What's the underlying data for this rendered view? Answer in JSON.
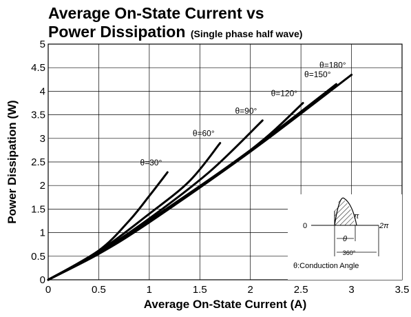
{
  "title_line1": "Average On-State Current vs",
  "title_line2_main": "Power Dissipation",
  "title_line2_sub": "(Single phase half wave)",
  "chart_data": {
    "type": "line",
    "title": "Average On-State Current vs Power Dissipation (Single phase half wave)",
    "xlabel": "Average On-State Current (A)",
    "ylabel": "Power Dissipation (W)",
    "xlim": [
      0,
      3.5
    ],
    "ylim": [
      0,
      5
    ],
    "xticks": [
      "0",
      "0.5",
      "1",
      "1.5",
      "2",
      "2.5",
      "3",
      "3.5"
    ],
    "yticks": [
      "0",
      "0.5",
      "1",
      "1.5",
      "2",
      "2.5",
      "3",
      "3.5",
      "4",
      "4.5",
      "5"
    ],
    "grid": true,
    "series": [
      {
        "name": "θ=30°",
        "x": [
          0,
          0.5,
          0.8,
          1.0,
          1.18
        ],
        "y": [
          0,
          0.62,
          1.25,
          1.78,
          2.28
        ]
      },
      {
        "name": "θ=60°",
        "x": [
          0,
          0.5,
          1.0,
          1.4,
          1.7
        ],
        "y": [
          0,
          0.6,
          1.4,
          2.1,
          2.9
        ]
      },
      {
        "name": "θ=90°",
        "x": [
          0,
          0.5,
          1.0,
          1.6,
          2.12
        ],
        "y": [
          0,
          0.58,
          1.3,
          2.3,
          3.38
        ]
      },
      {
        "name": "θ=120°",
        "x": [
          0,
          0.5,
          1.0,
          2.0,
          2.52
        ],
        "y": [
          0,
          0.57,
          1.26,
          2.75,
          3.75
        ]
      },
      {
        "name": "θ=150°",
        "x": [
          0,
          0.5,
          1.0,
          2.0,
          2.85
        ],
        "y": [
          0,
          0.56,
          1.24,
          2.75,
          4.15
        ]
      },
      {
        "name": "θ=180°",
        "x": [
          0,
          0.5,
          1.0,
          2.0,
          3.0
        ],
        "y": [
          0,
          0.55,
          1.22,
          2.72,
          4.35
        ]
      }
    ]
  },
  "inset": {
    "label_0": "0",
    "label_pi": "π",
    "label_2pi": "2π",
    "label_theta": "θ",
    "label_360": "360°",
    "caption": "θ:Conduction Angle"
  }
}
